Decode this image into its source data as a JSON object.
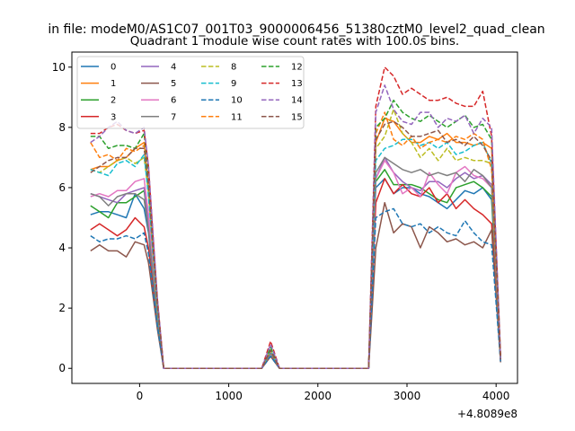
{
  "chart_data": {
    "type": "line",
    "suptitle": "in file: modeM0/AS1C07_001T03_9000006456_51380cztM0_level2_quad_clean",
    "title": "Quadrant 1 module wise count rates with 100.0s bins.",
    "x_offset_label": "+4.8089e8",
    "xlabel": "",
    "ylabel": "",
    "xlim": [
      -760,
      4240
    ],
    "ylim": [
      -0.5,
      10.5
    ],
    "xticks": [
      0,
      1000,
      2000,
      3000,
      4000
    ],
    "xtick_labels": [
      "0",
      "1000",
      "2000",
      "3000",
      "4000"
    ],
    "yticks": [
      0,
      2,
      4,
      6,
      8,
      10
    ],
    "ytick_labels": [
      "0",
      "2",
      "4",
      "6",
      "8",
      "10"
    ],
    "grid": false,
    "legend_position": "top-left",
    "legend_columns": 4,
    "x": [
      -550,
      -450,
      -350,
      -250,
      -150,
      -50,
      50,
      100,
      150,
      200,
      270,
      370,
      470,
      570,
      670,
      770,
      870,
      970,
      1070,
      1170,
      1270,
      1370,
      1470,
      1570,
      1670,
      1770,
      1870,
      1970,
      2070,
      2170,
      2270,
      2370,
      2470,
      2570,
      2650,
      2750,
      2850,
      2950,
      3050,
      3150,
      3250,
      3350,
      3450,
      3550,
      3650,
      3750,
      3850,
      3950,
      4050
    ],
    "series": [
      {
        "name": "0",
        "color": "#1f77b4",
        "dash": "solid",
        "values": [
          5.1,
          5.2,
          5.2,
          5.1,
          5.0,
          5.8,
          5.3,
          4.5,
          3.0,
          1.6,
          0,
          0,
          0,
          0,
          0,
          0,
          0,
          0,
          0,
          0,
          0,
          0,
          0.5,
          0,
          0,
          0,
          0,
          0,
          0,
          0,
          0,
          0,
          0,
          0,
          6.0,
          6.3,
          5.8,
          6.0,
          6.0,
          5.8,
          5.7,
          5.5,
          5.3,
          5.6,
          5.9,
          5.8,
          6.0,
          5.6,
          0.3
        ]
      },
      {
        "name": "1",
        "color": "#ff7f0e",
        "dash": "solid",
        "values": [
          6.6,
          6.7,
          6.7,
          6.9,
          7.0,
          7.3,
          7.5,
          6.0,
          3.8,
          2.0,
          0,
          0,
          0,
          0,
          0,
          0,
          0,
          0,
          0,
          0,
          0,
          0,
          0.6,
          0,
          0,
          0,
          0,
          0,
          0,
          0,
          0,
          0,
          0,
          0,
          7.5,
          8.3,
          8.2,
          7.8,
          7.5,
          7.5,
          7.7,
          7.6,
          7.8,
          7.5,
          7.5,
          7.4,
          7.5,
          7.3,
          0.3
        ]
      },
      {
        "name": "2",
        "color": "#2ca02c",
        "dash": "solid",
        "values": [
          5.4,
          5.2,
          5.0,
          5.5,
          5.5,
          5.7,
          5.9,
          4.8,
          3.2,
          1.7,
          0,
          0,
          0,
          0,
          0,
          0,
          0,
          0,
          0,
          0,
          0,
          0,
          0.5,
          0,
          0,
          0,
          0,
          0,
          0,
          0,
          0,
          0,
          0,
          0,
          6.2,
          6.6,
          6.1,
          6.1,
          6.1,
          6.0,
          5.8,
          5.6,
          5.5,
          6.0,
          6.1,
          6.2,
          6.0,
          5.7,
          0.3
        ]
      },
      {
        "name": "3",
        "color": "#d62728",
        "dash": "solid",
        "values": [
          4.6,
          4.8,
          4.6,
          4.4,
          4.6,
          5.0,
          4.7,
          4.0,
          2.7,
          1.5,
          0,
          0,
          0,
          0,
          0,
          0,
          0,
          0,
          0,
          0,
          0,
          0,
          0.4,
          0,
          0,
          0,
          0,
          0,
          0,
          0,
          0,
          0,
          0,
          0,
          5.5,
          6.3,
          5.8,
          6.1,
          5.8,
          5.7,
          6.0,
          5.5,
          5.8,
          5.3,
          5.6,
          5.3,
          5.1,
          4.8,
          0.3
        ]
      },
      {
        "name": "4",
        "color": "#9467bd",
        "dash": "solid",
        "values": [
          5.8,
          5.7,
          5.6,
          5.5,
          5.8,
          5.9,
          6.0,
          4.9,
          3.3,
          1.7,
          0,
          0,
          0,
          0,
          0,
          0,
          0,
          0,
          0,
          0,
          0,
          0,
          0.5,
          0,
          0,
          0,
          0,
          0,
          0,
          0,
          0,
          0,
          0,
          0,
          6.3,
          7.0,
          6.5,
          6.2,
          6.0,
          5.9,
          6.2,
          6.2,
          6.0,
          6.3,
          6.5,
          6.3,
          6.4,
          6.1,
          0.3
        ]
      },
      {
        "name": "5",
        "color": "#8c564b",
        "dash": "solid",
        "values": [
          3.9,
          4.1,
          3.9,
          3.9,
          3.7,
          4.2,
          4.1,
          3.5,
          2.4,
          1.3,
          0,
          0,
          0,
          0,
          0,
          0,
          0,
          0,
          0,
          0,
          0,
          0,
          0.4,
          0,
          0,
          0,
          0,
          0,
          0,
          0,
          0,
          0,
          0,
          0,
          4.0,
          5.5,
          4.5,
          4.8,
          4.7,
          4.0,
          4.7,
          4.5,
          4.2,
          4.3,
          4.1,
          4.2,
          4.0,
          4.6,
          0.2
        ]
      },
      {
        "name": "6",
        "color": "#e377c2",
        "dash": "solid",
        "values": [
          5.7,
          5.8,
          5.7,
          5.9,
          5.9,
          6.2,
          6.3,
          5.1,
          3.4,
          1.8,
          0,
          0,
          0,
          0,
          0,
          0,
          0,
          0,
          0,
          0,
          0,
          0,
          0.5,
          0,
          0,
          0,
          0,
          0,
          0,
          0,
          0,
          0,
          0,
          0,
          6.3,
          6.9,
          6.5,
          5.8,
          6.0,
          5.7,
          6.5,
          6.1,
          5.8,
          6.5,
          6.7,
          6.4,
          6.3,
          6.0,
          0.3
        ]
      },
      {
        "name": "7",
        "color": "#7f7f7f",
        "dash": "solid",
        "values": [
          5.8,
          5.7,
          5.4,
          5.7,
          5.8,
          5.8,
          5.6,
          4.6,
          3.1,
          1.6,
          0,
          0,
          0,
          0,
          0,
          0,
          0,
          0,
          0,
          0,
          0,
          0,
          0.5,
          0,
          0,
          0,
          0,
          0,
          0,
          0,
          0,
          0,
          0,
          0,
          6.5,
          7.0,
          6.8,
          6.6,
          6.5,
          6.6,
          6.4,
          6.5,
          6.4,
          6.5,
          6.2,
          6.6,
          6.4,
          6.0,
          0.3
        ]
      },
      {
        "name": "8",
        "color": "#bcbd22",
        "dash": "dashed",
        "values": [
          6.6,
          6.5,
          6.7,
          6.9,
          7.0,
          6.8,
          7.0,
          5.8,
          3.8,
          2.0,
          0,
          0,
          0,
          0,
          0,
          0,
          0,
          0,
          0,
          0,
          0,
          0,
          0.6,
          0,
          0,
          0,
          0,
          0,
          0,
          0,
          0,
          0,
          0,
          0,
          7.3,
          7.7,
          8.6,
          7.8,
          7.5,
          7.0,
          7.3,
          6.9,
          7.3,
          6.9,
          7.0,
          6.9,
          6.9,
          6.8,
          0.3
        ]
      },
      {
        "name": "9",
        "color": "#17becf",
        "dash": "dashed",
        "values": [
          6.6,
          6.5,
          6.4,
          6.8,
          6.9,
          6.7,
          7.1,
          5.7,
          3.8,
          2.0,
          0,
          0,
          0,
          0,
          0,
          0,
          0,
          0,
          0,
          0,
          0,
          0,
          0.6,
          0,
          0,
          0,
          0,
          0,
          0,
          0,
          0,
          0,
          0,
          0,
          6.9,
          7.3,
          7.4,
          7.6,
          7.6,
          7.4,
          7.5,
          7.3,
          7.5,
          7.1,
          7.2,
          7.4,
          7.5,
          6.8,
          0.3
        ]
      },
      {
        "name": "10",
        "color": "#1f77b4",
        "dash": "dashed",
        "values": [
          4.4,
          4.2,
          4.3,
          4.3,
          4.4,
          4.3,
          4.5,
          3.8,
          2.6,
          1.4,
          0,
          0,
          0,
          0,
          0,
          0,
          0,
          0,
          0,
          0,
          0,
          0,
          0.4,
          0,
          0,
          0,
          0,
          0,
          0,
          0,
          0,
          0,
          0,
          0,
          5.0,
          5.2,
          5.3,
          4.8,
          4.7,
          4.8,
          4.5,
          4.7,
          4.5,
          4.4,
          4.9,
          4.5,
          4.2,
          4.1,
          0.2
        ]
      },
      {
        "name": "11",
        "color": "#ff7f0e",
        "dash": "dashed",
        "values": [
          7.5,
          7.0,
          7.1,
          6.9,
          7.3,
          7.2,
          7.4,
          6.2,
          4.1,
          2.2,
          0,
          0,
          0,
          0,
          0,
          0,
          0,
          0,
          0,
          0,
          0,
          0,
          0.6,
          0,
          0,
          0,
          0,
          0,
          0,
          0,
          0,
          0,
          0,
          0,
          7.8,
          8.5,
          7.6,
          7.4,
          7.7,
          7.3,
          7.5,
          7.6,
          7.5,
          7.7,
          7.6,
          7.8,
          7.6,
          6.6,
          0.3
        ]
      },
      {
        "name": "12",
        "color": "#2ca02c",
        "dash": "dashed",
        "values": [
          7.7,
          7.7,
          7.3,
          7.4,
          7.4,
          7.3,
          7.8,
          6.4,
          4.3,
          2.2,
          0,
          0,
          0,
          0,
          0,
          0,
          0,
          0,
          0,
          0,
          0,
          0,
          0.7,
          0,
          0,
          0,
          0,
          0,
          0,
          0,
          0,
          0,
          0,
          0,
          8.0,
          8.3,
          8.9,
          8.5,
          8.3,
          8.2,
          8.4,
          8.2,
          8.0,
          8.2,
          8.4,
          8.0,
          8.1,
          7.6,
          0.3
        ]
      },
      {
        "name": "13",
        "color": "#d62728",
        "dash": "dashed",
        "values": [
          7.8,
          7.8,
          8.0,
          8.1,
          7.9,
          7.8,
          7.9,
          6.7,
          4.4,
          2.3,
          0,
          0,
          0,
          0,
          0,
          0,
          0,
          0,
          0,
          0,
          0,
          0,
          0.9,
          0,
          0,
          0,
          0,
          0,
          0,
          0,
          0,
          0,
          0,
          0,
          8.7,
          10.0,
          9.7,
          9.1,
          9.3,
          9.1,
          8.9,
          8.9,
          9.0,
          8.8,
          8.7,
          8.7,
          9.2,
          7.7,
          0.4
        ]
      },
      {
        "name": "14",
        "color": "#9467bd",
        "dash": "dashed",
        "values": [
          7.5,
          7.7,
          8.0,
          8.2,
          7.9,
          7.8,
          8.0,
          6.7,
          4.5,
          2.3,
          0,
          0,
          0,
          0,
          0,
          0,
          0,
          0,
          0,
          0,
          0,
          0,
          0.8,
          0,
          0,
          0,
          0,
          0,
          0,
          0,
          0,
          0,
          0,
          0,
          8.5,
          9.4,
          8.6,
          8.2,
          8.1,
          8.5,
          8.5,
          8.0,
          8.3,
          8.2,
          8.4,
          7.8,
          8.3,
          8.0,
          0.3
        ]
      },
      {
        "name": "15",
        "color": "#8c564b",
        "dash": "dashed",
        "values": [
          6.5,
          6.7,
          6.9,
          7.0,
          7.0,
          7.3,
          7.3,
          6.1,
          4.0,
          2.1,
          0,
          0,
          0,
          0,
          0,
          0,
          0,
          0,
          0,
          0,
          0,
          0,
          0.6,
          0,
          0,
          0,
          0,
          0,
          0,
          0,
          0,
          0,
          0,
          0,
          7.6,
          8.1,
          8.2,
          8.0,
          7.7,
          7.7,
          7.8,
          7.9,
          7.5,
          7.6,
          7.4,
          7.7,
          7.4,
          6.9,
          0.3
        ]
      }
    ]
  }
}
